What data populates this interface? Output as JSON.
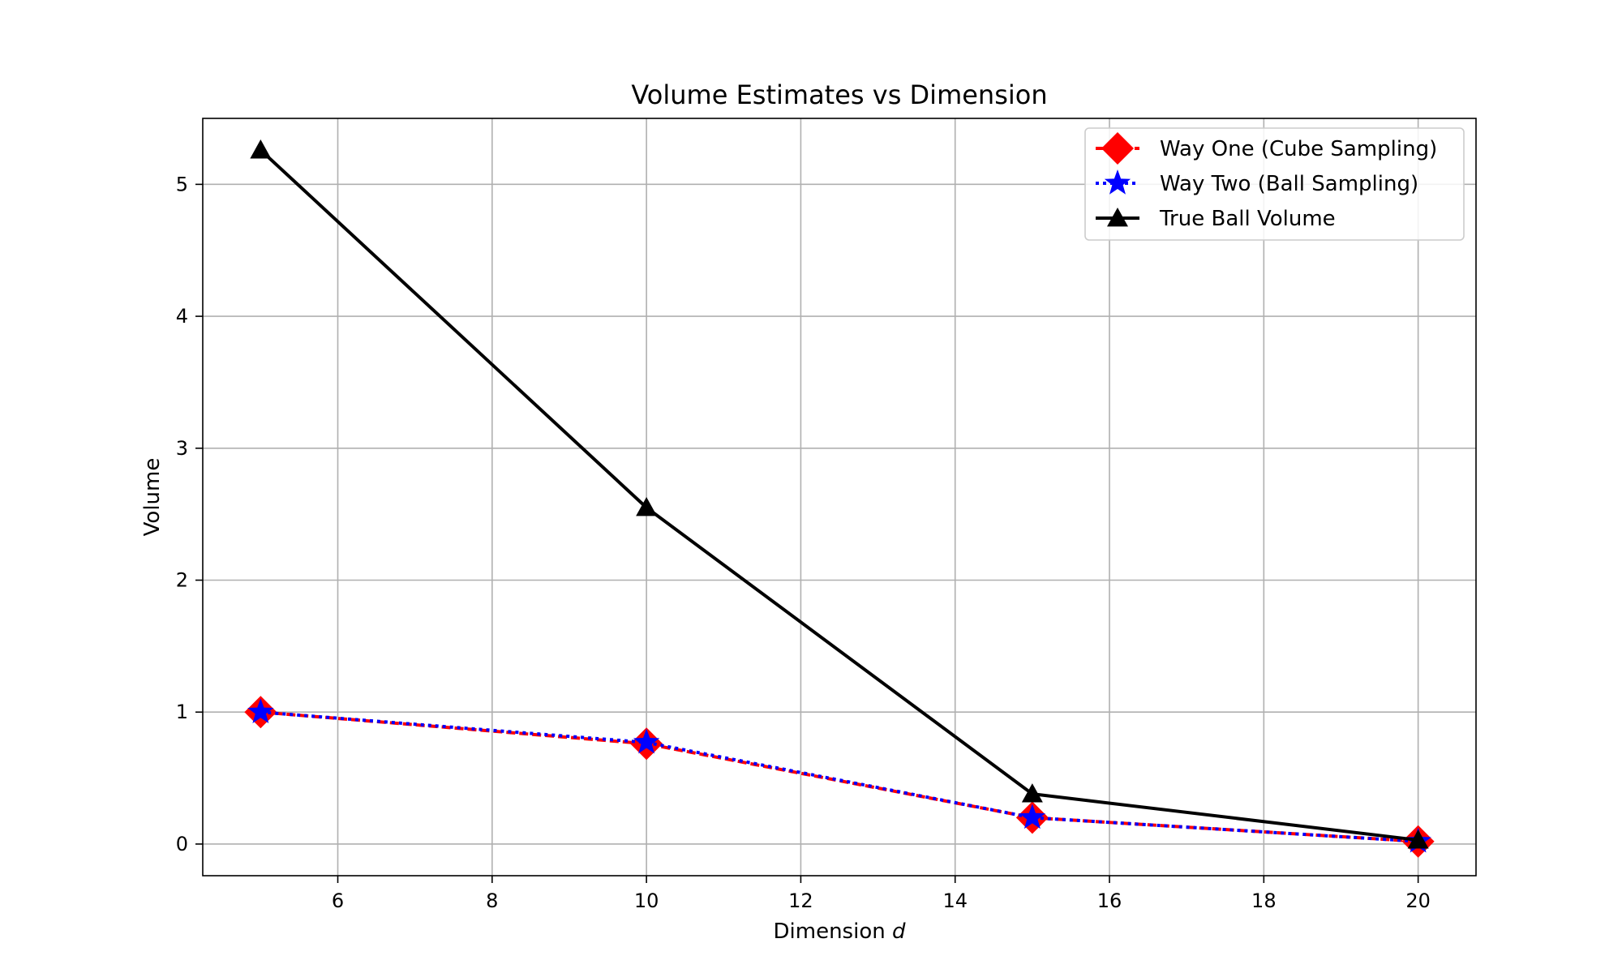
{
  "chart_data": {
    "type": "line",
    "title": "Volume Estimates vs Dimension",
    "xlabel": "Dimension",
    "xlabel_var": "d",
    "ylabel": "Volume",
    "xlim": [
      4.25,
      20.75
    ],
    "ylim": [
      -0.24,
      5.5
    ],
    "xticks": [
      6,
      8,
      10,
      12,
      14,
      16,
      18,
      20
    ],
    "yticks": [
      0,
      1,
      2,
      3,
      4,
      5
    ],
    "grid": true,
    "legend_position": "top-right",
    "x": [
      5,
      10,
      15,
      20
    ],
    "series": [
      {
        "name": "Way One (Cube Sampling)",
        "values": [
          1.0,
          0.76,
          0.2,
          0.02
        ],
        "color": "#ff0000",
        "marker": "diamond",
        "line_style": "dashed"
      },
      {
        "name": "Way Two (Ball Sampling)",
        "values": [
          1.0,
          0.77,
          0.2,
          0.02
        ],
        "color": "#0000ff",
        "marker": "star",
        "line_style": "dotted"
      },
      {
        "name": "True Ball Volume",
        "values": [
          5.26,
          2.55,
          0.38,
          0.03
        ],
        "color": "#000000",
        "marker": "triangle",
        "line_style": "solid"
      }
    ]
  }
}
